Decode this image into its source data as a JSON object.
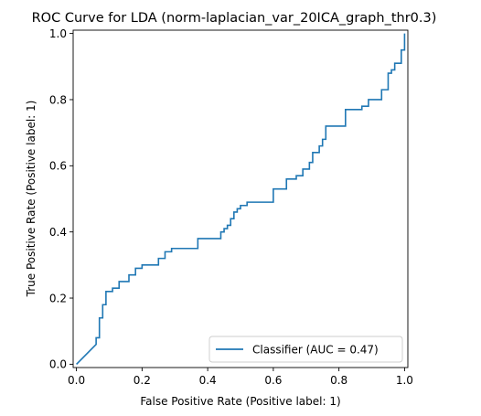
{
  "chart_data": {
    "type": "line",
    "title": "ROC Curve for LDA (norm-laplacian_var_20ICA_graph_thr0.3)",
    "xlabel": "False Positive Rate (Positive label: 1)",
    "ylabel": "True Positive Rate (Positive label: 1)",
    "xlim": [
      -0.01,
      1.01
    ],
    "ylim": [
      -0.01,
      1.01
    ],
    "xticks": [
      0.0,
      0.2,
      0.4,
      0.6,
      0.8,
      1.0
    ],
    "yticks": [
      0.0,
      0.2,
      0.4,
      0.6,
      0.8,
      1.0
    ],
    "xtick_labels": [
      "0.0",
      "0.2",
      "0.4",
      "0.6",
      "0.8",
      "1.0"
    ],
    "ytick_labels": [
      "0.0",
      "0.2",
      "0.4",
      "0.6",
      "0.8",
      "1.0"
    ],
    "grid": false,
    "legend_position": "lower-right",
    "series_color": "#1f77b4",
    "series": [
      {
        "name": "Classifier (AUC = 0.47)",
        "x": [
          0.0,
          0.0,
          0.06,
          0.06,
          0.07,
          0.07,
          0.08,
          0.08,
          0.09,
          0.09,
          0.11,
          0.11,
          0.13,
          0.13,
          0.16,
          0.16,
          0.18,
          0.18,
          0.2,
          0.2,
          0.25,
          0.25,
          0.27,
          0.27,
          0.29,
          0.29,
          0.37,
          0.37,
          0.44,
          0.44,
          0.45,
          0.45,
          0.46,
          0.46,
          0.47,
          0.47,
          0.48,
          0.48,
          0.49,
          0.49,
          0.5,
          0.5,
          0.52,
          0.52,
          0.54,
          0.54,
          0.6,
          0.6,
          0.64,
          0.64,
          0.67,
          0.67,
          0.69,
          0.69,
          0.71,
          0.71,
          0.72,
          0.72,
          0.74,
          0.74,
          0.75,
          0.75,
          0.76,
          0.76,
          0.77,
          0.77,
          0.82,
          0.82,
          0.87,
          0.87,
          0.89,
          0.89,
          0.93,
          0.93,
          0.95,
          0.95,
          0.96,
          0.96,
          0.97,
          0.97,
          0.99,
          0.99,
          1.0,
          1.0
        ],
        "y": [
          0.0,
          0.0,
          0.06,
          0.08,
          0.08,
          0.14,
          0.14,
          0.18,
          0.18,
          0.22,
          0.22,
          0.23,
          0.23,
          0.25,
          0.25,
          0.27,
          0.27,
          0.29,
          0.29,
          0.3,
          0.3,
          0.32,
          0.32,
          0.34,
          0.34,
          0.35,
          0.35,
          0.38,
          0.38,
          0.4,
          0.4,
          0.41,
          0.41,
          0.42,
          0.42,
          0.44,
          0.44,
          0.46,
          0.46,
          0.47,
          0.47,
          0.48,
          0.48,
          0.49,
          0.49,
          0.49,
          0.49,
          0.53,
          0.53,
          0.56,
          0.56,
          0.57,
          0.57,
          0.59,
          0.59,
          0.61,
          0.61,
          0.64,
          0.64,
          0.66,
          0.66,
          0.68,
          0.68,
          0.72,
          0.72,
          0.72,
          0.72,
          0.77,
          0.77,
          0.78,
          0.78,
          0.8,
          0.8,
          0.83,
          0.83,
          0.88,
          0.88,
          0.89,
          0.89,
          0.91,
          0.91,
          0.95,
          0.95,
          1.0
        ]
      }
    ]
  }
}
